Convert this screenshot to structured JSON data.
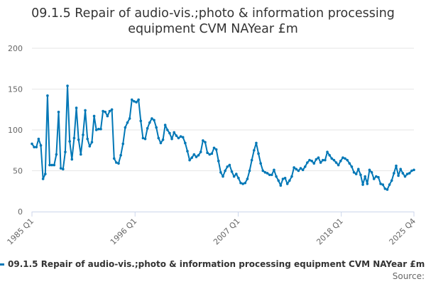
{
  "chart_data": {
    "type": "line",
    "title_line1": "09.1.5 Repair of audio-vis.;photo & information processing",
    "title_line2": "equipment CVM NAYear £m",
    "xlabel": "",
    "ylabel": "",
    "ylim": [
      0,
      200
    ],
    "yticks": [
      "0",
      "50",
      "100",
      "150",
      "200"
    ],
    "x_tick_labels": [
      "1985 Q1",
      "1996 Q1",
      "2007 Q1",
      "2018 Q1",
      "2025 Q4"
    ],
    "x_start": "1985 Q1",
    "x_end": "2025 Q4",
    "grid": true,
    "legend_position": "bottom",
    "series": [
      {
        "name": "09.1.5 Repair of audio-vis.;photo & information processing equipment CVM NAYear £m",
        "color": "#0077b6",
        "values": [
          83,
          79,
          79,
          89,
          81,
          40,
          46,
          142,
          57,
          57,
          57,
          70,
          122,
          53,
          52,
          73,
          154,
          86,
          64,
          90,
          127,
          88,
          70,
          94,
          124,
          89,
          80,
          85,
          117,
          100,
          101,
          101,
          123,
          122,
          117,
          123,
          125,
          65,
          60,
          59,
          69,
          83,
          103,
          109,
          114,
          137,
          135,
          134,
          137,
          111,
          90,
          89,
          102,
          109,
          114,
          112,
          103,
          90,
          84,
          88,
          106,
          100,
          96,
          89,
          97,
          93,
          90,
          92,
          91,
          84,
          74,
          63,
          66,
          70,
          67,
          69,
          73,
          87,
          85,
          72,
          70,
          71,
          78,
          76,
          62,
          48,
          43,
          50,
          55,
          57,
          49,
          43,
          46,
          41,
          35,
          34,
          35,
          40,
          50,
          63,
          75,
          84,
          71,
          59,
          50,
          48,
          47,
          45,
          45,
          51,
          43,
          38,
          32,
          40,
          41,
          34,
          38,
          43,
          54,
          52,
          50,
          53,
          51,
          55,
          60,
          63,
          62,
          59,
          64,
          66,
          60,
          63,
          63,
          73,
          69,
          65,
          63,
          60,
          57,
          62,
          66,
          65,
          63,
          59,
          55,
          48,
          46,
          52,
          45,
          33,
          43,
          34,
          51,
          48,
          40,
          43,
          42,
          34,
          33,
          28,
          27,
          33,
          38,
          47,
          56,
          44,
          52,
          47,
          43,
          46,
          47,
          50,
          51
        ]
      }
    ]
  },
  "source_label": "Source:"
}
